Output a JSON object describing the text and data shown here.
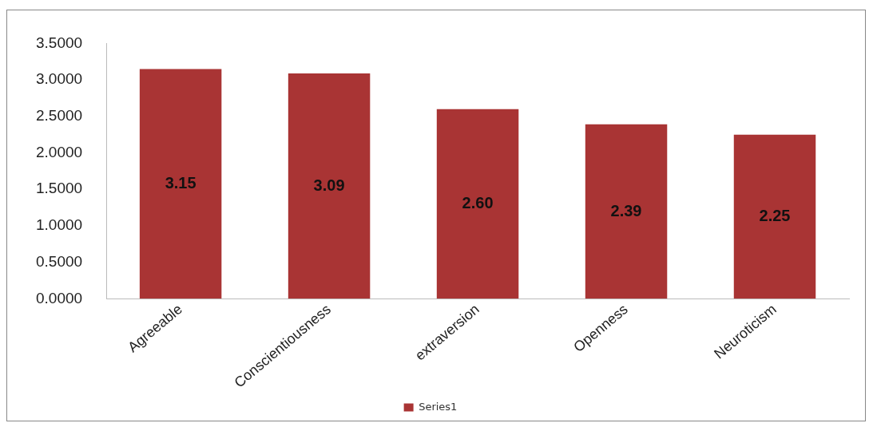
{
  "chart_data": {
    "type": "bar",
    "categories": [
      "Agreeable",
      "Conscientiousness",
      "extraversion",
      "Openness",
      "Neuroticism"
    ],
    "series": [
      {
        "name": "Series1",
        "color": "#a93434",
        "values": [
          3.15,
          3.09,
          2.6,
          2.39,
          2.25
        ],
        "value_labels": [
          "3.15",
          "3.09",
          "2.60",
          "2.39",
          "2.25"
        ]
      }
    ],
    "ylim": [
      0,
      3.5
    ],
    "yticks": [
      {
        "value": 0,
        "label": "0.0000"
      },
      {
        "value": 0.5,
        "label": "0.5000"
      },
      {
        "value": 1,
        "label": "1.0000"
      },
      {
        "value": 1.5,
        "label": "1.5000"
      },
      {
        "value": 2,
        "label": "2.0000"
      },
      {
        "value": 2.5,
        "label": "2.5000"
      },
      {
        "value": 3,
        "label": "3.0000"
      },
      {
        "value": 3.5,
        "label": "3.5000"
      }
    ],
    "grid": false,
    "legend": "bottom"
  }
}
